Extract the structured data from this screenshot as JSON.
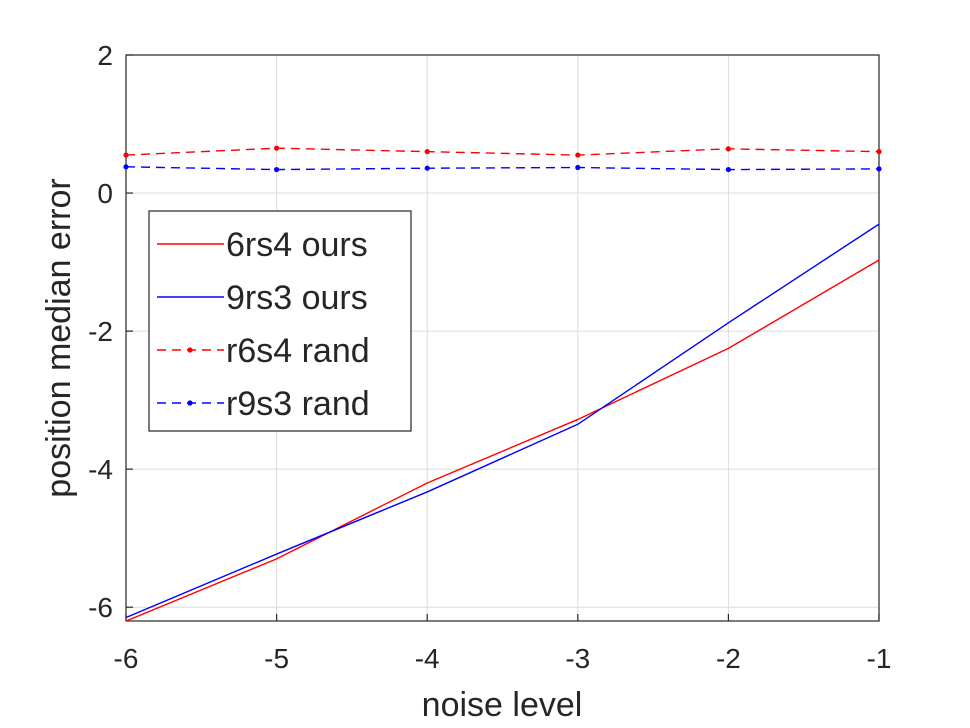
{
  "chart_data": {
    "type": "line",
    "xlabel": "noise level",
    "ylabel": "position median error",
    "xlim": [
      -6,
      -1
    ],
    "ylim": [
      -6.2,
      2
    ],
    "x_ticks": [
      "-6",
      "-5",
      "-4",
      "-3",
      "-2",
      "-1"
    ],
    "y_ticks": [
      "-6",
      "-4",
      "-2",
      "0",
      "2"
    ],
    "grid": true,
    "legend_position": "middle-left",
    "x": [
      -6,
      -5,
      -4,
      -3,
      -2,
      -1
    ],
    "series": [
      {
        "name": "6rs4 ours",
        "color": "#ff0000",
        "style": "solid",
        "marker": "none",
        "values": [
          -6.2,
          -5.3,
          -4.2,
          -3.28,
          -2.25,
          -0.97
        ]
      },
      {
        "name": "9rs3 ours",
        "color": "#0000ff",
        "style": "solid",
        "marker": "none",
        "values": [
          -6.15,
          -5.23,
          -4.33,
          -3.35,
          -1.88,
          -0.45
        ]
      },
      {
        "name": "r6s4 rand",
        "color": "#ff0000",
        "style": "dashed",
        "marker": "dot",
        "values": [
          0.55,
          0.65,
          0.6,
          0.55,
          0.64,
          0.6
        ]
      },
      {
        "name": "r9s3 rand",
        "color": "#0000ff",
        "style": "dashed",
        "marker": "dot",
        "values": [
          0.38,
          0.34,
          0.36,
          0.37,
          0.34,
          0.35
        ]
      }
    ]
  }
}
